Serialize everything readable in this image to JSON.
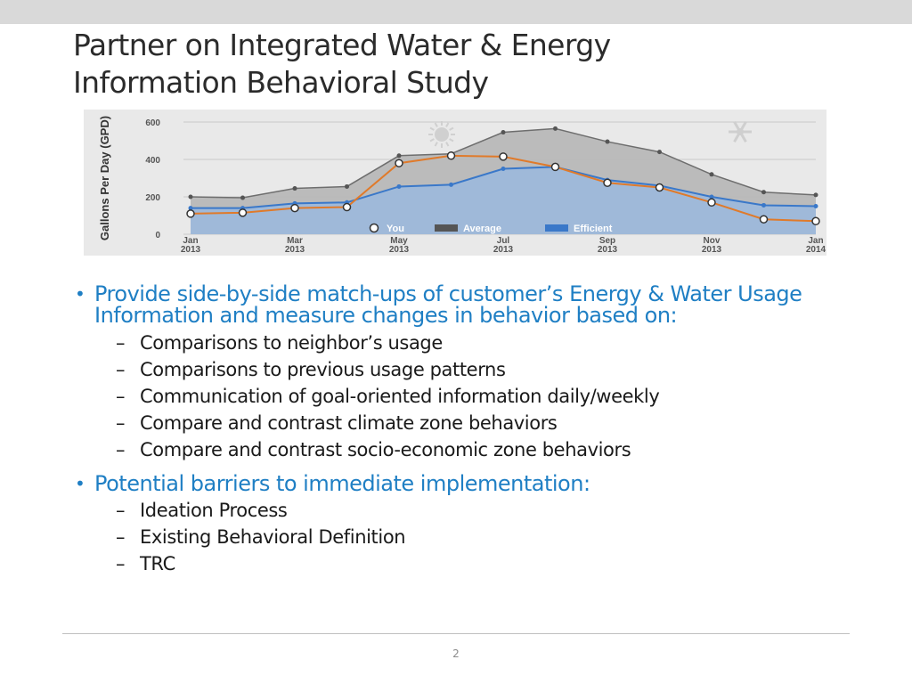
{
  "slide": {
    "title_line1": "Partner on Integrated Water & Energy",
    "title_line2": "Information Behavioral Study",
    "page_number": "2"
  },
  "chart_data": {
    "type": "area",
    "ylabel": "Gallons Per Day (GPD)",
    "ylim": [
      0,
      600
    ],
    "yticks": [
      "0",
      "200",
      "400",
      "600"
    ],
    "grid": true,
    "legend_position": "bottom-center",
    "x": [
      "Jan 2013",
      "Feb 2013",
      "Mar 2013",
      "Apr 2013",
      "May 2013",
      "Jun 2013",
      "Jul 2013",
      "Aug 2013",
      "Sep 2013",
      "Oct 2013",
      "Nov 2013",
      "Dec 2013",
      "Jan 2014"
    ],
    "xtick_labels": [
      {
        "month": "Jan",
        "year": "2013",
        "index": 0
      },
      {
        "month": "Mar",
        "year": "2013",
        "index": 2
      },
      {
        "month": "May",
        "year": "2013",
        "index": 4
      },
      {
        "month": "Jul",
        "year": "2013",
        "index": 6
      },
      {
        "month": "Sep",
        "year": "2013",
        "index": 8
      },
      {
        "month": "Nov",
        "year": "2013",
        "index": 10
      },
      {
        "month": "Jan",
        "year": "2014",
        "index": 12
      }
    ],
    "series": [
      {
        "name": "Average",
        "color": "#999999",
        "values": [
          200,
          195,
          245,
          255,
          420,
          430,
          545,
          565,
          495,
          440,
          320,
          225,
          210
        ]
      },
      {
        "name": "Efficient",
        "color": "#3a78c9",
        "values": [
          140,
          140,
          165,
          170,
          255,
          265,
          350,
          360,
          290,
          260,
          200,
          155,
          150
        ]
      },
      {
        "name": "You",
        "color": "#e07a2a",
        "values": [
          110,
          115,
          140,
          145,
          380,
          420,
          415,
          360,
          275,
          250,
          170,
          80,
          70
        ]
      }
    ],
    "decorations": [
      "sun-icon",
      "snowflake-icon"
    ]
  },
  "bullets": [
    {
      "text": "Provide side-by-side match-ups of customer’s Energy & Water Usage Information and measure changes in behavior based on:",
      "subitems": [
        "Comparisons to neighbor’s usage",
        "Comparisons to previous usage patterns",
        "Communication of goal-oriented information daily/weekly",
        "Compare and contrast climate zone behaviors",
        "Compare and contrast socio-economic zone behaviors"
      ]
    },
    {
      "text": "Potential barriers to immediate implementation:",
      "subitems": [
        "Ideation Process",
        "Existing Behavioral Definition",
        "TRC"
      ]
    }
  ],
  "colors": {
    "bullet_blue": "#1f7fc4",
    "title_gray": "#2b2b2b",
    "body_text": "#1a1a1a"
  }
}
